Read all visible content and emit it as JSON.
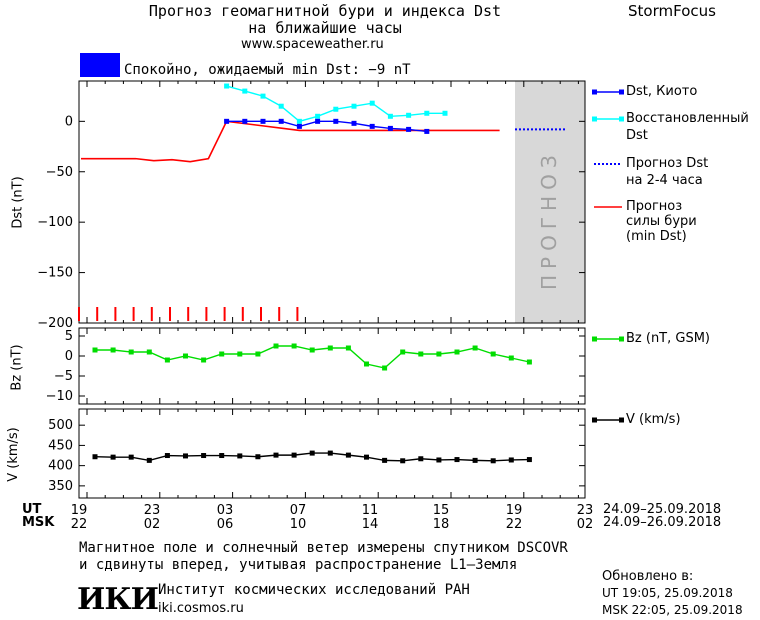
{
  "header": {
    "title_line1": "Прогноз геомагнитной бури и индекса Dst",
    "title_line2": "на ближайшие часы",
    "site": "www.spaceweather.ru",
    "brand": "StormFocus",
    "status_text": "Спокойно, ожидаемый min Dst: −9 nT",
    "status_color": "#0000ff"
  },
  "chart_data": [
    {
      "type": "line",
      "ylabel": "Dst (nT)",
      "ylim": [
        -200,
        40
      ],
      "yticks": [
        "0",
        "−50",
        "−100",
        "−150",
        "−200"
      ],
      "forecast_band_label": "ПРОГНОЗ",
      "series": [
        {
          "name": "Dst, Киото",
          "color": "#0000ff",
          "x": [
            8,
            9,
            10,
            11,
            12,
            13,
            14,
            15,
            16,
            17,
            18,
            19
          ],
          "y": [
            0,
            0,
            0,
            0,
            -5,
            0,
            0,
            -2,
            -5,
            -7,
            -8,
            -10
          ]
        },
        {
          "name": "Восстановленный Dst",
          "color": "#00ffff",
          "x": [
            8,
            9,
            10,
            11,
            12,
            13,
            14,
            15,
            16,
            17,
            18,
            19,
            20
          ],
          "y": [
            35,
            30,
            25,
            15,
            0,
            5,
            12,
            15,
            18,
            5,
            6,
            8,
            8
          ]
        },
        {
          "name": "Прогноз Dst на 2-4 часа",
          "color": "#0000ff",
          "style": "dotted",
          "x": [
            19,
            23
          ],
          "y": [
            -8,
            -8
          ]
        },
        {
          "name": "Прогноз силы бури (min Dst)",
          "color": "#ff0000",
          "x": [
            0,
            3,
            4,
            5,
            6,
            7,
            8,
            12,
            13,
            23
          ],
          "y": [
            -37,
            -37,
            -39,
            -38,
            -40,
            -37,
            0,
            -9,
            -9,
            -9
          ]
        }
      ],
      "red_ticks_x": [
        0,
        1,
        2,
        3,
        4,
        5,
        6,
        7,
        8,
        9,
        10,
        11,
        12
      ]
    },
    {
      "type": "line",
      "ylabel": "Bz (nT)",
      "ylim": [
        -12,
        7
      ],
      "yticks": [
        "5",
        "0",
        "−5",
        "−10"
      ],
      "series": [
        {
          "name": "Bz (nT, GSM)",
          "color": "#00dd00",
          "x": [
            1,
            2,
            3,
            4,
            5,
            6,
            7,
            8,
            9,
            10,
            11,
            12,
            13,
            14,
            15,
            16,
            17,
            18,
            19,
            20,
            21,
            22,
            23,
            24,
            25
          ],
          "y": [
            1.5,
            1.5,
            1,
            1,
            -1,
            0,
            -1,
            0.5,
            0.5,
            0.5,
            2.5,
            2.5,
            1.5,
            2,
            2,
            -2,
            -3,
            1,
            0.5,
            0.5,
            1,
            2,
            0.5,
            -0.5,
            -1.5
          ]
        }
      ]
    },
    {
      "type": "line",
      "ylabel": "V (km/s)",
      "ylim": [
        320,
        540
      ],
      "yticks": [
        "500",
        "450",
        "400",
        "350"
      ],
      "series": [
        {
          "name": "V (km/s)",
          "color": "#000000",
          "x": [
            1,
            2,
            3,
            4,
            5,
            6,
            7,
            8,
            9,
            10,
            11,
            12,
            13,
            14,
            15,
            16,
            17,
            18,
            19,
            20,
            21,
            22,
            23,
            24,
            25
          ],
          "y": [
            422,
            421,
            421,
            413,
            425,
            424,
            425,
            425,
            424,
            422,
            426,
            426,
            431,
            431,
            426,
            421,
            413,
            412,
            417,
            414,
            415,
            413,
            412,
            414,
            415
          ]
        }
      ]
    }
  ],
  "time_axis": {
    "ut_label": "UT",
    "msk_label": "MSK",
    "ut_ticks": [
      "19",
      "23",
      "03",
      "07",
      "11",
      "15",
      "19",
      "23"
    ],
    "msk_ticks": [
      "22",
      "02",
      "06",
      "10",
      "14",
      "18",
      "22",
      "02"
    ],
    "ut_dates": "24.09–25.09.2018",
    "msk_dates": "24.09–26.09.2018"
  },
  "legend": {
    "dst_kyoto": "Dst, Киото",
    "restored_line1": "Восстановленный",
    "restored_line2": "Dst",
    "forecast_line1": "Прогноз Dst",
    "forecast_line2": "на 2-4 часа",
    "storm_line1": "Прогноз",
    "storm_line2": "силы бури",
    "storm_line3": "(min Dst)",
    "bz": "Bz (nT, GSM)",
    "v": "V (km/s)"
  },
  "footer": {
    "note_line1": "Магнитное поле и солнечный ветер измерены спутником DSCOVR",
    "note_line2": "и сдвинуты вперед, учитывая распространение L1–Земля",
    "logo": "ИКИ",
    "institute": "Институт космических исследований РАН",
    "institute_site": "iki.cosmos.ru",
    "updated_label": "Обновлено в:",
    "updated_ut": "UT   19:05, 25.09.2018",
    "updated_msk": "MSK 22:05, 25.09.2018"
  }
}
